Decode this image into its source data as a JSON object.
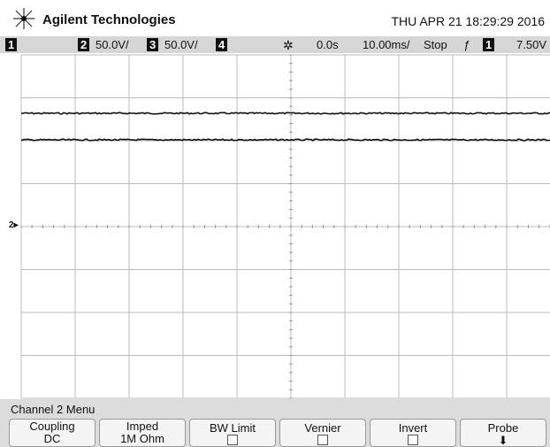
{
  "header": {
    "brand": "Agilent Technologies",
    "datetime": "THU APR 21 18:29:29 2016"
  },
  "status_bar": {
    "channels": [
      {
        "label": "1"
      },
      {
        "label": "2",
        "scale": "50.0V/"
      },
      {
        "label": "3",
        "scale": "50.0V/"
      },
      {
        "label": "4"
      }
    ],
    "delay": "0.0s",
    "timebase": "10.00ms/",
    "run_state": "Stop",
    "trigger_source": "1",
    "trigger_level": "7.50V"
  },
  "display": {
    "ground_marker": "2"
  },
  "menu": {
    "title": "Channel 2 Menu",
    "softkeys": [
      {
        "label": "Coupling",
        "value": "DC"
      },
      {
        "label": "Imped",
        "value": "1M Ohm"
      },
      {
        "label": "BW Limit"
      },
      {
        "label": "Vernier"
      },
      {
        "label": "Invert"
      },
      {
        "label": "Probe"
      }
    ]
  }
}
